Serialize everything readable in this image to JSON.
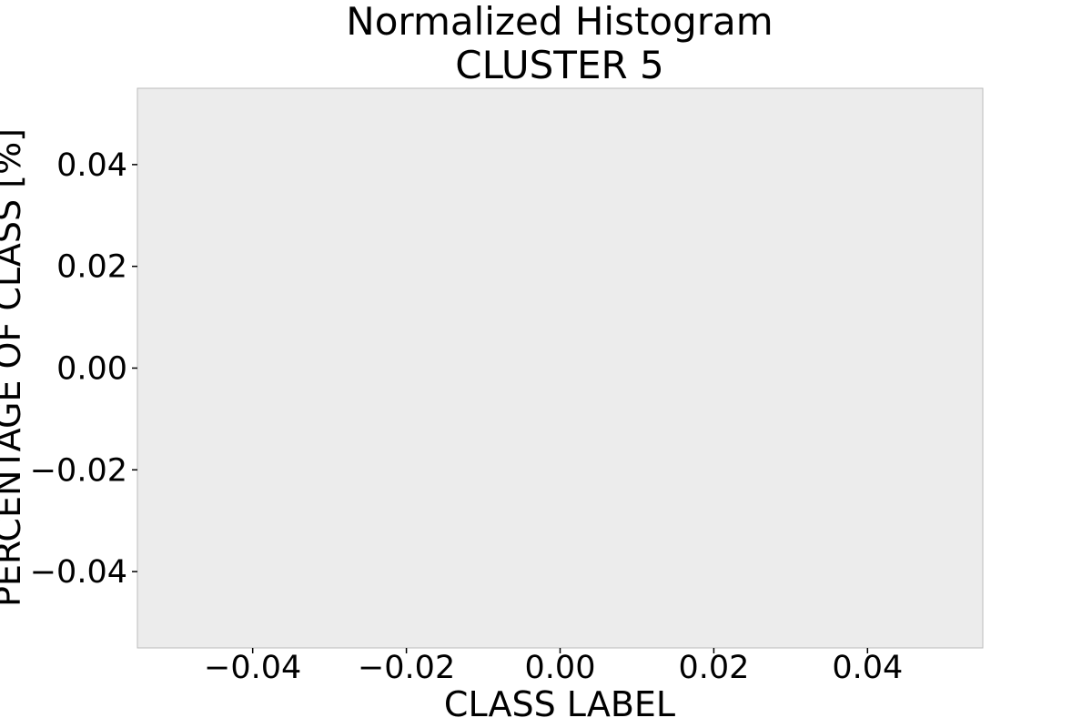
{
  "chart_data": {
    "type": "bar",
    "title": "Normalized Histogram",
    "subtitle": "CLUSTER 5",
    "xlabel": "CLASS LABEL",
    "ylabel": "PERCENTAGE OF CLASS [%]",
    "xlim": [
      -0.055,
      0.055
    ],
    "ylim": [
      -0.055,
      0.055
    ],
    "xticks": [
      -0.04,
      -0.02,
      0.0,
      0.02,
      0.04
    ],
    "yticks": [
      -0.04,
      -0.02,
      0.0,
      0.02,
      0.04
    ],
    "xtick_labels": [
      "−0.04",
      "−0.02",
      "0.00",
      "0.02",
      "0.04"
    ],
    "ytick_labels": [
      "−0.04",
      "−0.02",
      "0.00",
      "0.02",
      "0.04"
    ],
    "categories": [],
    "values": [],
    "grid": false,
    "colors": {
      "plot_background": "#ececec",
      "plot_border": "#bbbbbb",
      "text": "#000000"
    }
  }
}
